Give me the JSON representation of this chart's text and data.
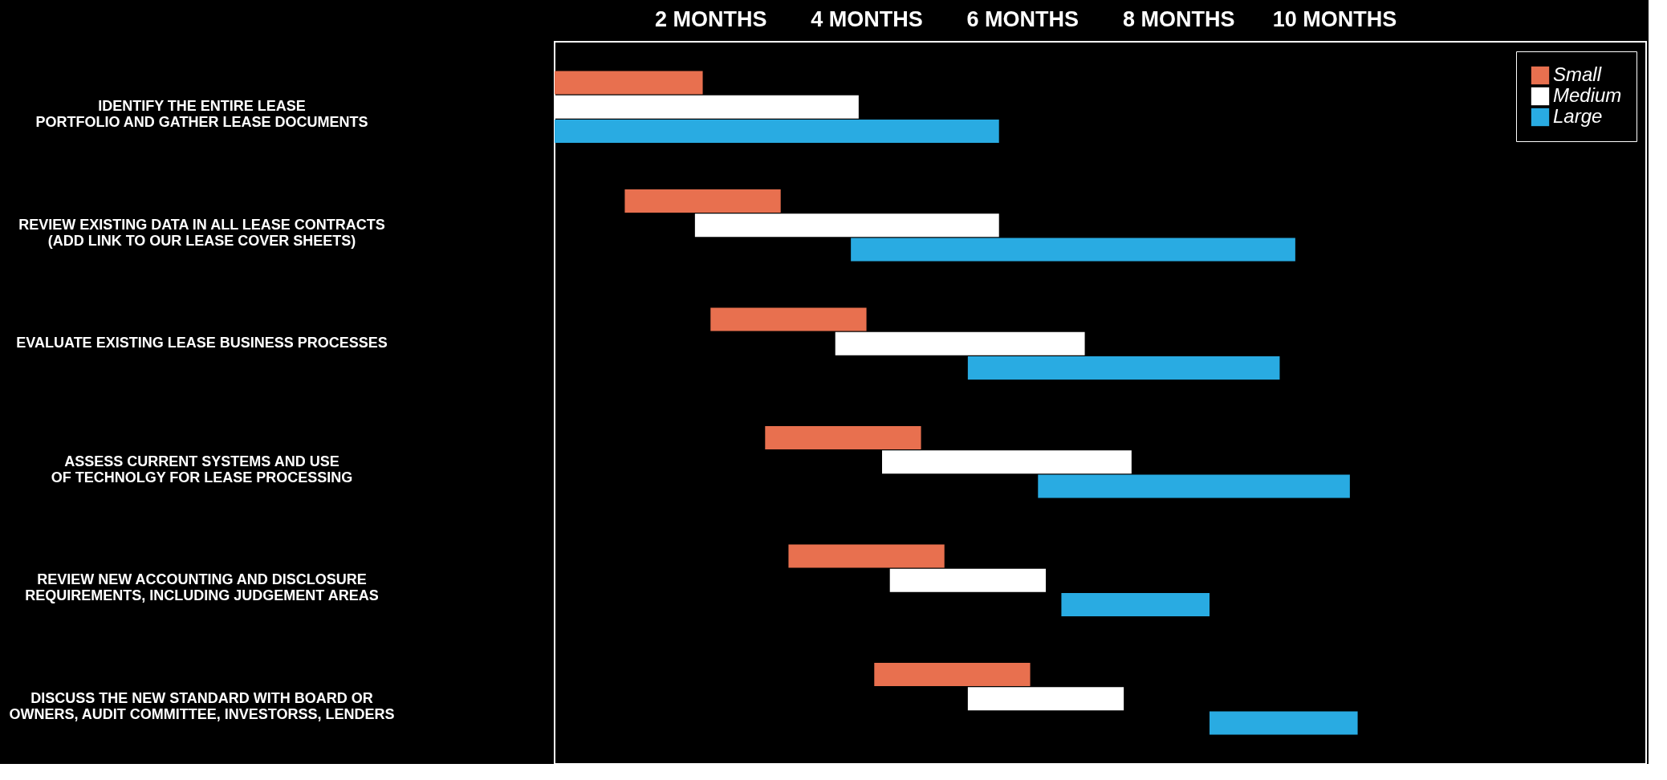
{
  "chart_data": {
    "type": "bar",
    "orientation": "horizontal",
    "categories": [
      "IDENTIFY THE ENTIRE LEASE\nPORTFOLIO AND GATHER LEASE DOCUMENTS",
      "REVIEW EXISTING DATA IN ALL LEASE CONTRACTS\n(ADD LINK TO OUR LEASE COVER SHEETS)",
      "EVALUATE EXISTING LEASE BUSINESS PROCESSES",
      "ASSESS CURRENT SYSTEMS AND USE\nOF TECHNOLGY FOR LEASE PROCESSING",
      "REVIEW NEW ACCOUNTING AND DISCLOSURE\nREQUIREMENTS, INCLUDING JUDGEMENT AREAS",
      "DISCUSS THE NEW STANDARD WITH BOARD OR\nOWNERS, AUDIT COMMITTEE, INVESTORSS, LENDERS"
    ],
    "series": [
      {
        "name": "Small",
        "color": "#e8704f",
        "base": [
          0,
          0.9,
          2.0,
          2.7,
          3.0,
          4.1
        ],
        "values": [
          1.9,
          2.0,
          2.0,
          2.0,
          2.0,
          2.0
        ]
      },
      {
        "name": "Medium",
        "color": "#ffffff",
        "base": [
          0,
          1.8,
          3.6,
          4.2,
          4.3,
          5.3
        ],
        "values": [
          3.9,
          3.9,
          3.2,
          3.2,
          2.0,
          2.0
        ]
      },
      {
        "name": "Large",
        "color": "#29abe2",
        "base": [
          0,
          3.8,
          5.3,
          6.2,
          6.5,
          8.4
        ],
        "values": [
          5.7,
          5.7,
          4.0,
          4.0,
          1.9,
          1.9
        ]
      }
    ],
    "xlim": [
      0,
      14
    ],
    "xticks": [
      {
        "value": 2,
        "label": "2 MONTHS"
      },
      {
        "value": 4,
        "label": "4 MONTHS"
      },
      {
        "value": 6,
        "label": "6 MONTHS"
      },
      {
        "value": 8,
        "label": "8 MONTHS"
      },
      {
        "value": 10,
        "label": "10 MONTHS"
      }
    ],
    "legend": "top right",
    "grid": false
  }
}
